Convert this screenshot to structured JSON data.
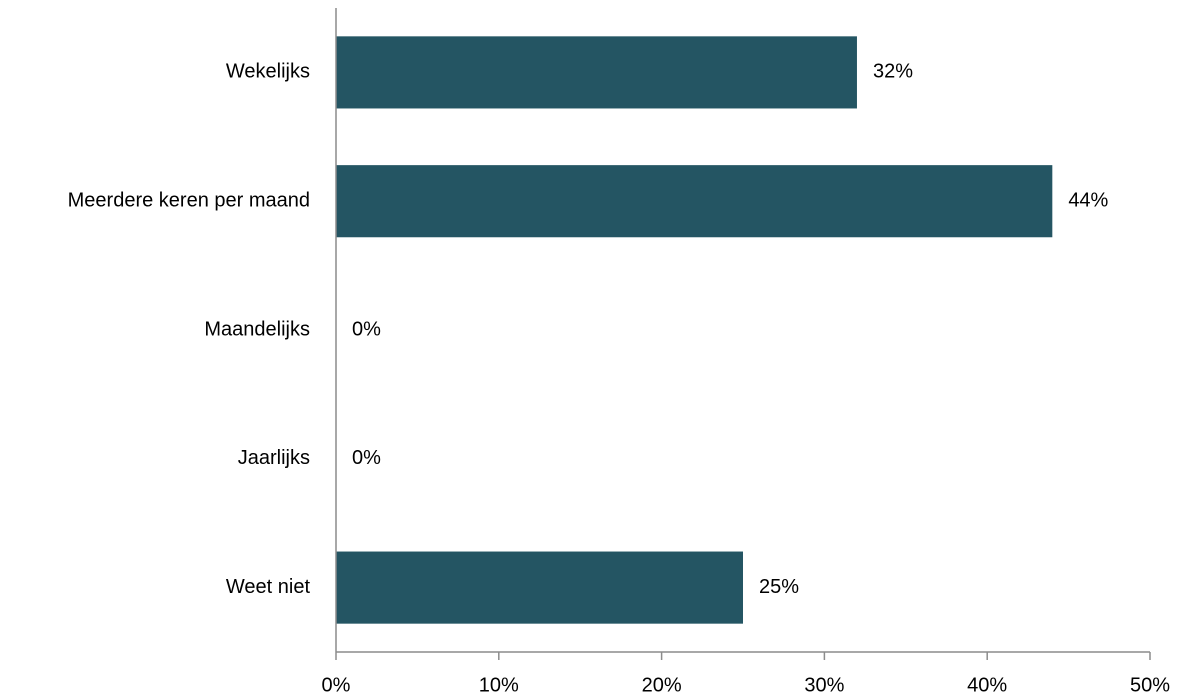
{
  "chart_data": {
    "type": "bar",
    "orientation": "horizontal",
    "title": "",
    "xlabel": "",
    "ylabel": "",
    "categories": [
      "Wekelijks",
      "Meerdere keren per maand",
      "Maandelijks",
      "Jaarlijks",
      "Weet niet"
    ],
    "values": [
      32,
      44,
      0,
      0,
      25
    ],
    "value_labels": [
      "32%",
      "44%",
      "0%",
      "0%",
      "25%"
    ],
    "xlim": [
      0,
      50
    ],
    "x_ticks": [
      0,
      10,
      20,
      30,
      40,
      50
    ],
    "x_tick_labels": [
      "0%",
      "10%",
      "20%",
      "30%",
      "40%",
      "50%"
    ],
    "grid": false,
    "legend": "none",
    "bar_color": "#245563",
    "axis_color": "#8c8c8c"
  }
}
